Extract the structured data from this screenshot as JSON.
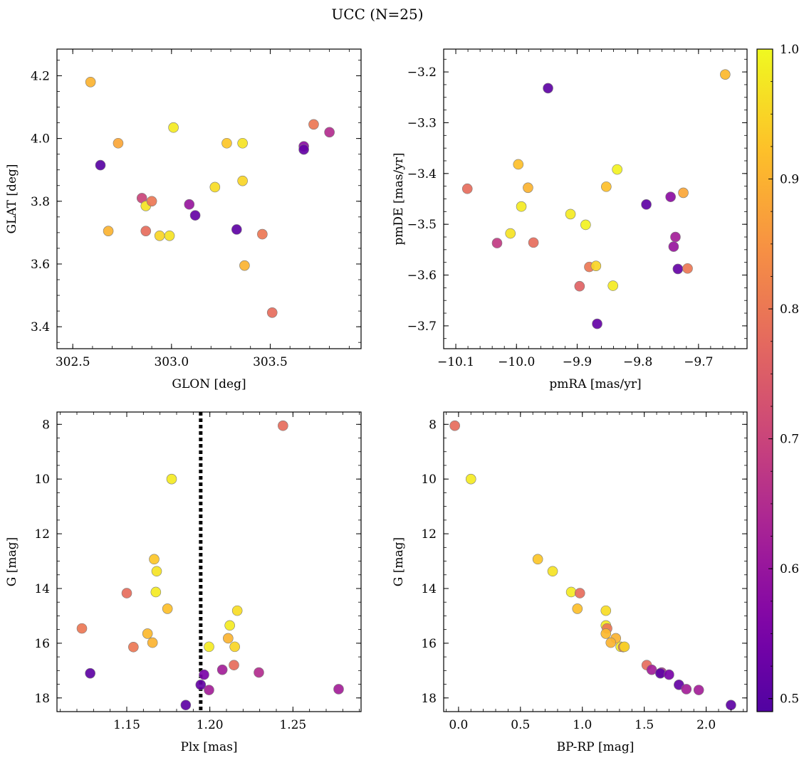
{
  "figure": {
    "title": "UCC (N=25)"
  },
  "colorbar": {
    "min": 0.49,
    "max": 1.0,
    "ticks": [
      "0.5",
      "0.6",
      "0.7",
      "0.8",
      "0.9",
      "1.0"
    ],
    "colormap": "plasma"
  },
  "chart_data": [
    {
      "type": "scatter",
      "panel": "top-left",
      "xlabel": "GLON [deg]",
      "ylabel": "GLAT [deg]",
      "xlim": [
        302.42,
        303.96
      ],
      "ylim": [
        3.33,
        4.285
      ],
      "xticks": [
        302.5,
        303.0,
        303.5
      ],
      "xticklabels": [
        "302.5",
        "303.0",
        "303.5"
      ],
      "yticks": [
        3.4,
        3.6,
        3.8,
        4.0,
        4.2
      ],
      "yticklabels": [
        "3.4",
        "3.6",
        "3.8",
        "4.0",
        "4.2"
      ],
      "y_inverted": false,
      "points": [
        {
          "x": 302.59,
          "y": 4.18,
          "c": 0.9
        },
        {
          "x": 302.73,
          "y": 3.985,
          "c": 0.88
        },
        {
          "x": 302.64,
          "y": 3.915,
          "c": 0.5
        },
        {
          "x": 302.68,
          "y": 3.705,
          "c": 0.9
        },
        {
          "x": 302.85,
          "y": 3.81,
          "c": 0.7
        },
        {
          "x": 302.87,
          "y": 3.705,
          "c": 0.78
        },
        {
          "x": 302.87,
          "y": 3.785,
          "c": 0.97
        },
        {
          "x": 302.9,
          "y": 3.8,
          "c": 0.8
        },
        {
          "x": 302.94,
          "y": 3.69,
          "c": 0.95
        },
        {
          "x": 302.99,
          "y": 3.69,
          "c": 0.97
        },
        {
          "x": 303.01,
          "y": 4.035,
          "c": 0.98
        },
        {
          "x": 303.09,
          "y": 3.79,
          "c": 0.6
        },
        {
          "x": 303.12,
          "y": 3.755,
          "c": 0.52
        },
        {
          "x": 303.22,
          "y": 3.845,
          "c": 0.96
        },
        {
          "x": 303.28,
          "y": 3.985,
          "c": 0.93
        },
        {
          "x": 303.33,
          "y": 3.71,
          "c": 0.51
        },
        {
          "x": 303.36,
          "y": 3.985,
          "c": 0.97
        },
        {
          "x": 303.36,
          "y": 3.865,
          "c": 0.95
        },
        {
          "x": 303.37,
          "y": 3.595,
          "c": 0.9
        },
        {
          "x": 303.46,
          "y": 3.695,
          "c": 0.8
        },
        {
          "x": 303.51,
          "y": 3.445,
          "c": 0.78
        },
        {
          "x": 303.67,
          "y": 3.975,
          "c": 0.58
        },
        {
          "x": 303.67,
          "y": 3.965,
          "c": 0.52
        },
        {
          "x": 303.72,
          "y": 4.045,
          "c": 0.8
        },
        {
          "x": 303.8,
          "y": 4.02,
          "c": 0.65
        }
      ]
    },
    {
      "type": "scatter",
      "panel": "top-right",
      "xlabel": "pmRA [mas/yr]",
      "ylabel": "pmDE [mas/yr]",
      "xlim": [
        -10.12,
        -9.62
      ],
      "ylim": [
        -3.745,
        -3.155
      ],
      "xticks": [
        -10.1,
        -10.0,
        -9.9,
        -9.8,
        -9.7
      ],
      "xticklabels": [
        "−10.1",
        "−10.0",
        "−9.9",
        "−9.8",
        "−9.7"
      ],
      "yticks": [
        -3.7,
        -3.6,
        -3.5,
        -3.4,
        -3.3,
        -3.2
      ],
      "yticklabels": [
        "−3.7",
        "−3.6",
        "−3.5",
        "−3.4",
        "−3.3",
        "−3.2"
      ],
      "y_inverted": false,
      "points": [
        {
          "x": -9.656,
          "y": -3.205,
          "c": 0.91
        },
        {
          "x": -9.948,
          "y": -3.232,
          "c": 0.51
        },
        {
          "x": -10.081,
          "y": -3.43,
          "c": 0.78
        },
        {
          "x": -9.997,
          "y": -3.382,
          "c": 0.92
        },
        {
          "x": -9.981,
          "y": -3.428,
          "c": 0.9
        },
        {
          "x": -9.992,
          "y": -3.465,
          "c": 0.98
        },
        {
          "x": -10.01,
          "y": -3.518,
          "c": 0.97
        },
        {
          "x": -10.032,
          "y": -3.537,
          "c": 0.68
        },
        {
          "x": -9.972,
          "y": -3.536,
          "c": 0.78
        },
        {
          "x": -9.911,
          "y": -3.48,
          "c": 0.98
        },
        {
          "x": -9.886,
          "y": -3.501,
          "c": 0.99
        },
        {
          "x": -9.852,
          "y": -3.426,
          "c": 0.92
        },
        {
          "x": -9.834,
          "y": -3.392,
          "c": 0.99
        },
        {
          "x": -9.88,
          "y": -3.584,
          "c": 0.8
        },
        {
          "x": -9.869,
          "y": -3.582,
          "c": 0.95
        },
        {
          "x": -9.896,
          "y": -3.622,
          "c": 0.76
        },
        {
          "x": -9.841,
          "y": -3.621,
          "c": 0.98
        },
        {
          "x": -9.867,
          "y": -3.696,
          "c": 0.52
        },
        {
          "x": -9.786,
          "y": -3.461,
          "c": 0.51
        },
        {
          "x": -9.746,
          "y": -3.446,
          "c": 0.58
        },
        {
          "x": -9.725,
          "y": -3.438,
          "c": 0.88
        },
        {
          "x": -9.738,
          "y": -3.525,
          "c": 0.62
        },
        {
          "x": -9.741,
          "y": -3.544,
          "c": 0.6
        },
        {
          "x": -9.734,
          "y": -3.588,
          "c": 0.52
        },
        {
          "x": -9.718,
          "y": -3.587,
          "c": 0.8
        }
      ]
    },
    {
      "type": "scatter",
      "panel": "bottom-left",
      "xlabel": "Plx [mas]",
      "ylabel": "G [mag]",
      "xlim": [
        1.108,
        1.291
      ],
      "ylim": [
        18.5,
        7.55
      ],
      "xticks": [
        1.15,
        1.2,
        1.25
      ],
      "xticklabels": [
        "1.15",
        "1.20",
        "1.25"
      ],
      "yticks": [
        8,
        10,
        12,
        14,
        16,
        18
      ],
      "yticklabels": [
        "8",
        "10",
        "12",
        "14",
        "16",
        "18"
      ],
      "y_inverted": true,
      "vline": {
        "x": 1.1945,
        "style": "dotted"
      },
      "points": [
        {
          "x": 1.244,
          "y": 8.05,
          "c": 0.78
        },
        {
          "x": 1.177,
          "y": 10.0,
          "c": 0.98
        },
        {
          "x": 1.1665,
          "y": 12.93,
          "c": 0.93
        },
        {
          "x": 1.168,
          "y": 13.37,
          "c": 0.97
        },
        {
          "x": 1.15,
          "y": 14.17,
          "c": 0.78
        },
        {
          "x": 1.1675,
          "y": 14.13,
          "c": 0.98
        },
        {
          "x": 1.1745,
          "y": 14.74,
          "c": 0.92
        },
        {
          "x": 1.123,
          "y": 15.46,
          "c": 0.8
        },
        {
          "x": 1.1625,
          "y": 15.65,
          "c": 0.91
        },
        {
          "x": 1.154,
          "y": 16.14,
          "c": 0.8
        },
        {
          "x": 1.1655,
          "y": 15.98,
          "c": 0.9
        },
        {
          "x": 1.1995,
          "y": 16.13,
          "c": 0.98
        },
        {
          "x": 1.2165,
          "y": 14.81,
          "c": 0.96
        },
        {
          "x": 1.212,
          "y": 15.35,
          "c": 0.98
        },
        {
          "x": 1.211,
          "y": 15.82,
          "c": 0.9
        },
        {
          "x": 1.215,
          "y": 16.13,
          "c": 0.95
        },
        {
          "x": 1.2145,
          "y": 16.8,
          "c": 0.78
        },
        {
          "x": 1.2075,
          "y": 16.97,
          "c": 0.62
        },
        {
          "x": 1.2295,
          "y": 17.07,
          "c": 0.65
        },
        {
          "x": 1.128,
          "y": 17.1,
          "c": 0.51
        },
        {
          "x": 1.1965,
          "y": 17.15,
          "c": 0.55
        },
        {
          "x": 1.1945,
          "y": 17.52,
          "c": 0.52
        },
        {
          "x": 1.1995,
          "y": 17.71,
          "c": 0.62
        },
        {
          "x": 1.2775,
          "y": 17.68,
          "c": 0.62
        },
        {
          "x": 1.1855,
          "y": 18.26,
          "c": 0.51
        }
      ]
    },
    {
      "type": "scatter",
      "panel": "bottom-right",
      "xlabel": "BP-RP [mag]",
      "ylabel": "G [mag]",
      "xlim": [
        -0.12,
        2.33
      ],
      "ylim": [
        18.5,
        7.55
      ],
      "xticks": [
        0.0,
        0.5,
        1.0,
        1.5,
        2.0
      ],
      "xticklabels": [
        "0.0",
        "0.5",
        "1.0",
        "1.5",
        "2.0"
      ],
      "yticks": [
        8,
        10,
        12,
        14,
        16,
        18
      ],
      "yticklabels": [
        "8",
        "10",
        "12",
        "14",
        "16",
        "18"
      ],
      "y_inverted": true,
      "points": [
        {
          "x": -0.03,
          "y": 8.05,
          "c": 0.78
        },
        {
          "x": 0.1,
          "y": 10.0,
          "c": 0.98
        },
        {
          "x": 0.64,
          "y": 12.93,
          "c": 0.93
        },
        {
          "x": 0.76,
          "y": 13.37,
          "c": 0.97
        },
        {
          "x": 0.91,
          "y": 14.13,
          "c": 0.98
        },
        {
          "x": 0.98,
          "y": 14.17,
          "c": 0.78
        },
        {
          "x": 0.96,
          "y": 14.74,
          "c": 0.92
        },
        {
          "x": 1.19,
          "y": 14.81,
          "c": 0.96
        },
        {
          "x": 1.19,
          "y": 15.35,
          "c": 0.98
        },
        {
          "x": 1.2,
          "y": 15.46,
          "c": 0.8
        },
        {
          "x": 1.19,
          "y": 15.65,
          "c": 0.91
        },
        {
          "x": 1.27,
          "y": 15.82,
          "c": 0.9
        },
        {
          "x": 1.23,
          "y": 15.98,
          "c": 0.9
        },
        {
          "x": 1.31,
          "y": 16.13,
          "c": 0.98
        },
        {
          "x": 1.33,
          "y": 16.14,
          "c": 0.8
        },
        {
          "x": 1.34,
          "y": 16.13,
          "c": 0.95
        },
        {
          "x": 1.52,
          "y": 16.8,
          "c": 0.78
        },
        {
          "x": 1.56,
          "y": 16.97,
          "c": 0.62
        },
        {
          "x": 1.64,
          "y": 17.07,
          "c": 0.65
        },
        {
          "x": 1.63,
          "y": 17.1,
          "c": 0.51
        },
        {
          "x": 1.7,
          "y": 17.15,
          "c": 0.55
        },
        {
          "x": 1.78,
          "y": 17.52,
          "c": 0.52
        },
        {
          "x": 1.84,
          "y": 17.68,
          "c": 0.62
        },
        {
          "x": 1.94,
          "y": 17.71,
          "c": 0.62
        },
        {
          "x": 2.2,
          "y": 18.26,
          "c": 0.51
        }
      ]
    }
  ]
}
